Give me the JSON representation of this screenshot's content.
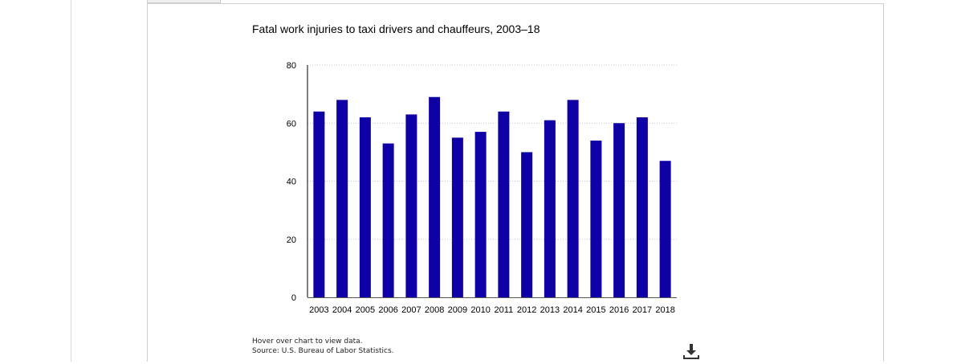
{
  "notes": {
    "hover": "Hover over chart to view data.",
    "source": "Source: U.S. Bureau of Labor Statistics."
  },
  "download_icon": "download-icon",
  "colors": {
    "bar": "#0f00a6",
    "grid": "#c8c8c8",
    "axis": "#000000"
  },
  "chart_data": {
    "type": "bar",
    "title": "Fatal work injuries to taxi drivers and chauffeurs, 2003–18",
    "xlabel": "",
    "ylabel": "",
    "categories": [
      "2003",
      "2004",
      "2005",
      "2006",
      "2007",
      "2008",
      "2009",
      "2010",
      "2011",
      "2012",
      "2013",
      "2014",
      "2015",
      "2016",
      "2017",
      "2018"
    ],
    "values": [
      64,
      68,
      62,
      53,
      63,
      69,
      55,
      57,
      64,
      50,
      61,
      68,
      54,
      60,
      62,
      47
    ],
    "ylim": [
      0,
      80
    ],
    "yticks": [
      0,
      20,
      40,
      60,
      80
    ],
    "grid": true,
    "legend": "none"
  }
}
